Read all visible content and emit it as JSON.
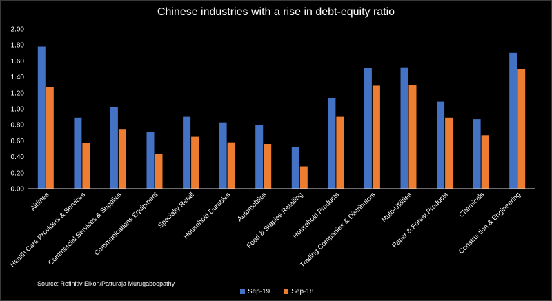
{
  "chart_data": {
    "type": "bar",
    "title": "Chinese industries with a rise in debt-equity ratio",
    "categories": [
      "Airlines",
      "Health Care Providers & Services",
      "Commercial Services & Supplies",
      "Communications Equipment",
      "Specialty Retail",
      "Household Durables",
      "Automobiles",
      "Food & Staples Retailing",
      "Household Products",
      "Trading Companies & Distributors",
      "Multi-Utilities",
      "Paper & Forest Products",
      "Chemicals",
      "Construction & Engineering"
    ],
    "series": [
      {
        "name": "Sep-19",
        "color": "#4472c4",
        "values": [
          1.78,
          0.89,
          1.02,
          0.71,
          0.9,
          0.83,
          0.8,
          0.52,
          1.13,
          1.51,
          1.52,
          1.09,
          0.87,
          1.7
        ]
      },
      {
        "name": "Sep-18",
        "color": "#ed7d31",
        "values": [
          1.27,
          0.57,
          0.74,
          0.44,
          0.65,
          0.58,
          0.56,
          0.28,
          0.9,
          1.29,
          1.3,
          0.89,
          0.67,
          1.5
        ]
      }
    ],
    "yticks": [
      "0.00",
      "0.20",
      "0.40",
      "0.60",
      "0.80",
      "1.00",
      "1.20",
      "1.40",
      "1.60",
      "1.80",
      "2.00"
    ],
    "ylim": [
      0,
      2
    ],
    "xlabel": "",
    "ylabel": "",
    "legend_position": "bottom"
  },
  "source": "Source: Refinitiv Eikon/Patturaja Murugaboopathy"
}
